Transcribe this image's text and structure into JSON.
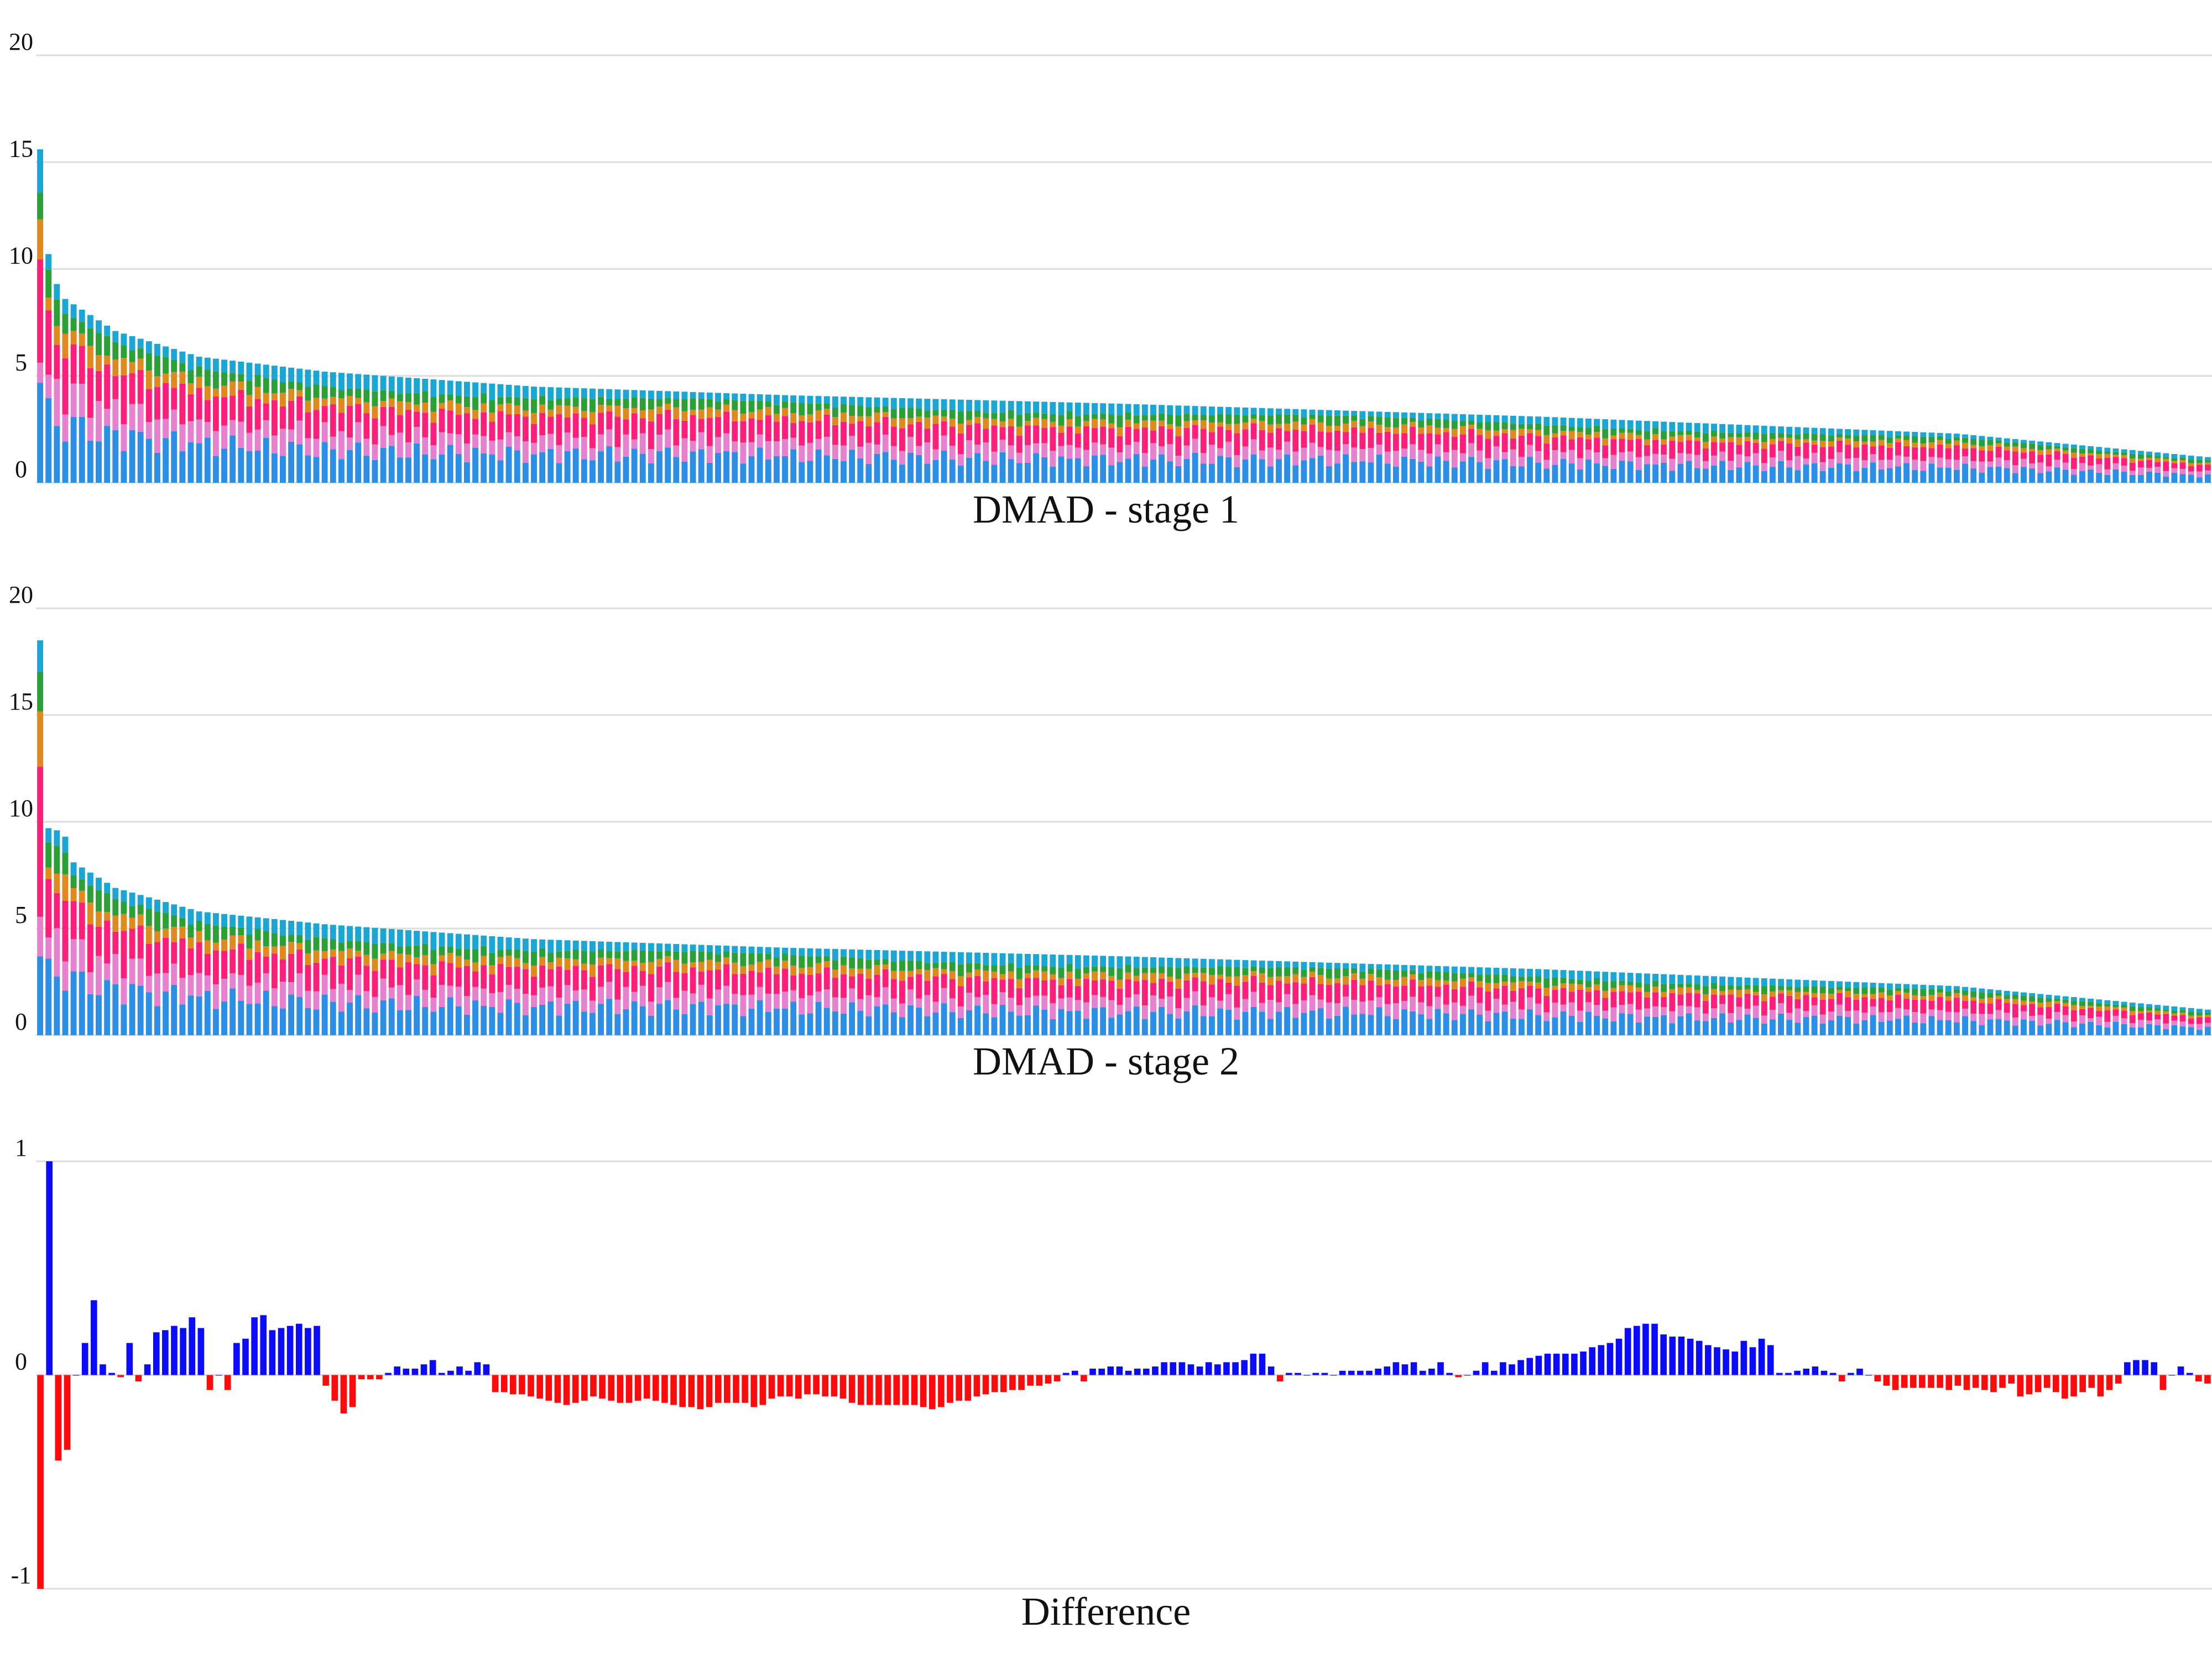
{
  "chart_data": [
    {
      "type": "bar",
      "stacked": true,
      "xlabel": "DMAD - stage 1",
      "ylabel": "",
      "ylim": [
        0,
        20
      ],
      "yticks": [
        "0",
        "5",
        "10",
        "15",
        "20"
      ],
      "grid": true,
      "n_bars": 260,
      "totals_by_rank": [
        [
          1,
          15.6
        ],
        [
          2,
          10.7
        ],
        [
          3,
          9.3
        ],
        [
          4,
          8.6
        ],
        [
          10,
          7.1
        ],
        [
          20,
          5.9
        ],
        [
          35,
          5.2
        ],
        [
          60,
          4.5
        ],
        [
          90,
          4.1
        ],
        [
          130,
          3.7
        ],
        [
          180,
          3.1
        ],
        [
          230,
          2.3
        ],
        [
          260,
          1.2
        ]
      ],
      "segment_fractions": [
        0.3,
        0.17,
        0.23,
        0.09,
        0.1,
        0.11
      ],
      "segment_colors": [
        "#2b8fe8",
        "#e880d0",
        "#ff1f7a",
        "#e08a1e",
        "#2aa035",
        "#1ba7d6"
      ],
      "first_bar_fractions": [
        0.3,
        0.06,
        0.31,
        0.12,
        0.08,
        0.13
      ]
    },
    {
      "type": "bar",
      "stacked": true,
      "xlabel": "DMAD - stage 2",
      "ylabel": "",
      "ylim": [
        0,
        20
      ],
      "yticks": [
        "0",
        "5",
        "10",
        "15",
        "20"
      ],
      "grid": true,
      "n_bars": 260,
      "totals_by_rank": [
        [
          1,
          18.5
        ],
        [
          2,
          9.7
        ],
        [
          3,
          9.6
        ],
        [
          4,
          9.3
        ],
        [
          5,
          8.1
        ],
        [
          10,
          6.9
        ],
        [
          20,
          5.8
        ],
        [
          35,
          5.2
        ],
        [
          60,
          4.5
        ],
        [
          90,
          4.1
        ],
        [
          130,
          3.7
        ],
        [
          180,
          3.1
        ],
        [
          230,
          2.3
        ],
        [
          260,
          1.2
        ]
      ],
      "segment_fractions": [
        0.3,
        0.17,
        0.23,
        0.09,
        0.1,
        0.11
      ],
      "segment_colors": [
        "#2b8fe8",
        "#e880d0",
        "#ff1f7a",
        "#e08a1e",
        "#2aa035",
        "#1ba7d6"
      ],
      "first_bar_fractions": [
        0.2,
        0.1,
        0.38,
        0.14,
        0.1,
        0.08
      ]
    },
    {
      "type": "bar",
      "xlabel": "Difference",
      "ylabel": "",
      "ylim": [
        -1,
        1
      ],
      "yticks": [
        "-1",
        "0",
        "1"
      ],
      "grid": true,
      "positive_color": "#0a0aff",
      "negative_color": "#ff0a0a",
      "values": [
        -1.0,
        1.0,
        -0.4,
        -0.35,
        0.0,
        0.15,
        0.35,
        0.05,
        0.01,
        -0.01,
        0.15,
        -0.03,
        0.05,
        0.2,
        0.21,
        0.23,
        0.22,
        0.27,
        0.22,
        -0.07,
        0.0,
        -0.07,
        0.15,
        0.17,
        0.27,
        0.28,
        0.21,
        0.22,
        0.23,
        0.24,
        0.22,
        0.23,
        -0.05,
        -0.12,
        -0.18,
        -0.15,
        -0.02,
        -0.02,
        -0.02,
        0.01,
        0.04,
        0.03,
        0.03,
        0.05,
        0.07,
        0.01,
        0.02,
        0.04,
        0.02,
        0.06,
        0.05,
        -0.08,
        -0.08,
        -0.09,
        -0.09,
        -0.1,
        -0.11,
        -0.12,
        -0.13,
        -0.14,
        -0.13,
        -0.12,
        -0.1,
        -0.11,
        -0.12,
        -0.13,
        -0.13,
        -0.12,
        -0.11,
        -0.12,
        -0.13,
        -0.14,
        -0.15,
        -0.15,
        -0.16,
        -0.15,
        -0.13,
        -0.13,
        -0.13,
        -0.13,
        -0.15,
        -0.14,
        -0.11,
        -0.1,
        -0.1,
        -0.11,
        -0.09,
        -0.09,
        -0.1,
        -0.1,
        -0.11,
        -0.13,
        -0.14,
        -0.14,
        -0.14,
        -0.14,
        -0.14,
        -0.14,
        -0.14,
        -0.15,
        -0.16,
        -0.15,
        -0.13,
        -0.12,
        -0.12,
        -0.1,
        -0.09,
        -0.08,
        -0.08,
        -0.07,
        -0.07,
        -0.05,
        -0.05,
        -0.04,
        -0.03,
        0.01,
        0.02,
        -0.03,
        0.03,
        0.03,
        0.04,
        0.04,
        0.02,
        0.03,
        0.03,
        0.04,
        0.06,
        0.06,
        0.06,
        0.05,
        0.04,
        0.06,
        0.05,
        0.06,
        0.06,
        0.07,
        0.1,
        0.1,
        0.04,
        -0.03,
        0.01,
        0.01,
        0.0,
        0.01,
        0.01,
        0.0,
        0.02,
        0.02,
        0.02,
        0.02,
        0.03,
        0.04,
        0.06,
        0.05,
        0.06,
        0.02,
        0.03,
        0.06,
        0.01,
        -0.01,
        0.0,
        0.02,
        0.06,
        0.02,
        0.06,
        0.05,
        0.07,
        0.08,
        0.09,
        0.1,
        0.1,
        0.1,
        0.1,
        0.11,
        0.13,
        0.14,
        0.15,
        0.17,
        0.22,
        0.23,
        0.24,
        0.24,
        0.19,
        0.18,
        0.18,
        0.17,
        0.16,
        0.14,
        0.13,
        0.12,
        0.11,
        0.16,
        0.13,
        0.17,
        0.14,
        0.01,
        0.01,
        0.02,
        0.03,
        0.04,
        0.02,
        0.01,
        -0.03,
        0.01,
        0.03,
        0.0,
        -0.03,
        -0.05,
        -0.07,
        -0.06,
        -0.06,
        -0.06,
        -0.06,
        -0.06,
        -0.07,
        -0.05,
        -0.07,
        -0.06,
        -0.07,
        -0.08,
        -0.06,
        -0.04,
        -0.1,
        -0.09,
        -0.08,
        -0.06,
        -0.08,
        -0.11,
        -0.1,
        -0.08,
        -0.06,
        -0.1,
        -0.07,
        -0.04,
        0.06,
        0.07,
        0.07,
        0.06,
        -0.07,
        0.0,
        0.04,
        0.01,
        -0.03,
        -0.04
      ]
    }
  ]
}
